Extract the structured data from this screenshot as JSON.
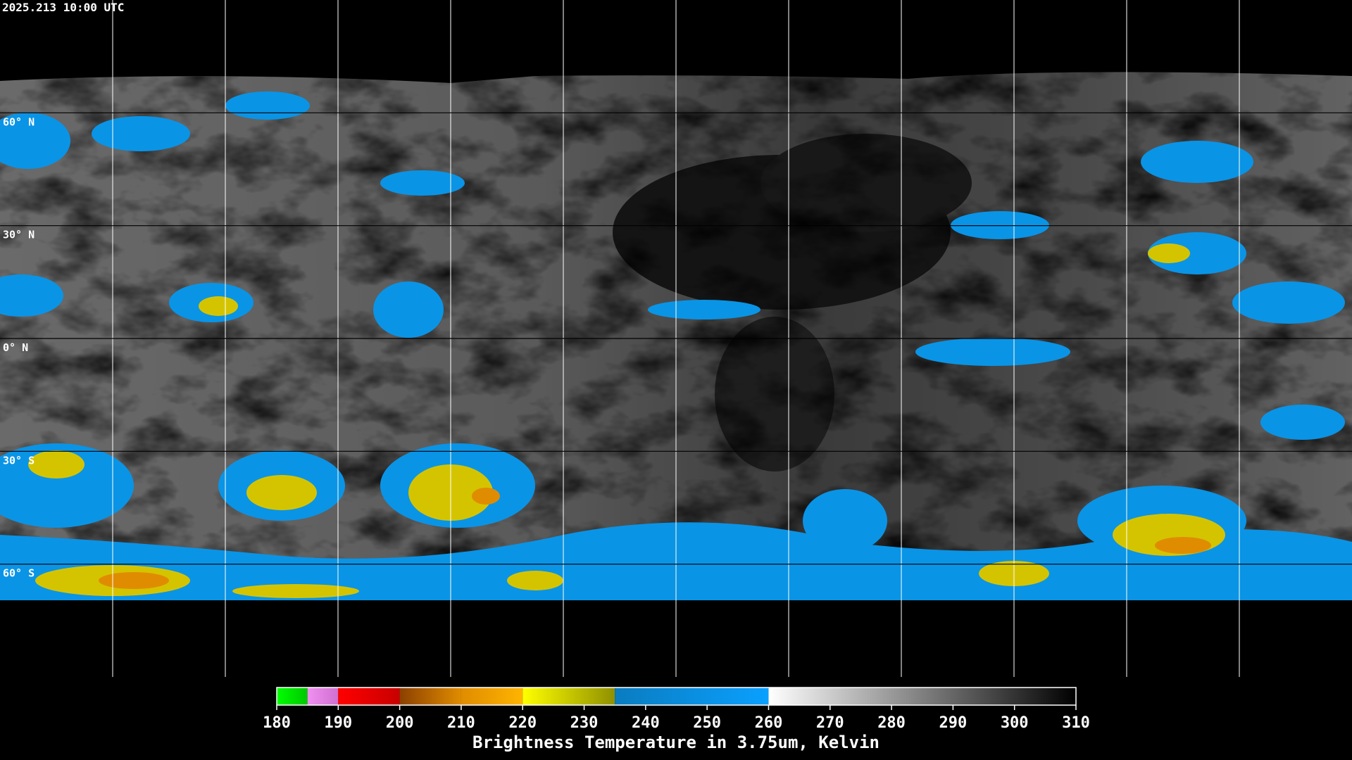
{
  "header": {
    "timestamp": "2025.213 10:00 UTC"
  },
  "map": {
    "lat_range": [
      -90,
      90
    ],
    "lat_lines": [
      {
        "value": 60,
        "label": "60° N"
      },
      {
        "value": 30,
        "label": "30° N"
      },
      {
        "value": 0,
        "label": "0° N"
      },
      {
        "value": -30,
        "label": "30° S"
      },
      {
        "value": -60,
        "label": "60° S"
      }
    ]
  },
  "colorbar": {
    "title": "Brightness Temperature in 3.75um, Kelvin",
    "range": [
      180,
      310
    ],
    "ticks": [
      180,
      190,
      200,
      210,
      220,
      230,
      240,
      250,
      260,
      270,
      280,
      290,
      300,
      310
    ],
    "segments": [
      {
        "from": 180,
        "to": 185,
        "colors": [
          "#00ff00",
          "#00c800"
        ]
      },
      {
        "from": 185,
        "to": 190,
        "colors": [
          "#f090f0",
          "#d070d0"
        ]
      },
      {
        "from": 190,
        "to": 200,
        "colors": [
          "#ff0000",
          "#c80000"
        ]
      },
      {
        "from": 200,
        "to": 210,
        "colors": [
          "#8c4000",
          "#e08c00"
        ]
      },
      {
        "from": 210,
        "to": 220,
        "colors": [
          "#e08c00",
          "#ffb400"
        ]
      },
      {
        "from": 220,
        "to": 235,
        "colors": [
          "#ffff00",
          "#909000"
        ]
      },
      {
        "from": 235,
        "to": 260,
        "colors": [
          "#0a7cc0",
          "#0aa0ff"
        ]
      },
      {
        "from": 260,
        "to": 310,
        "colors": [
          "#ffffff",
          "#000000"
        ]
      }
    ]
  }
}
